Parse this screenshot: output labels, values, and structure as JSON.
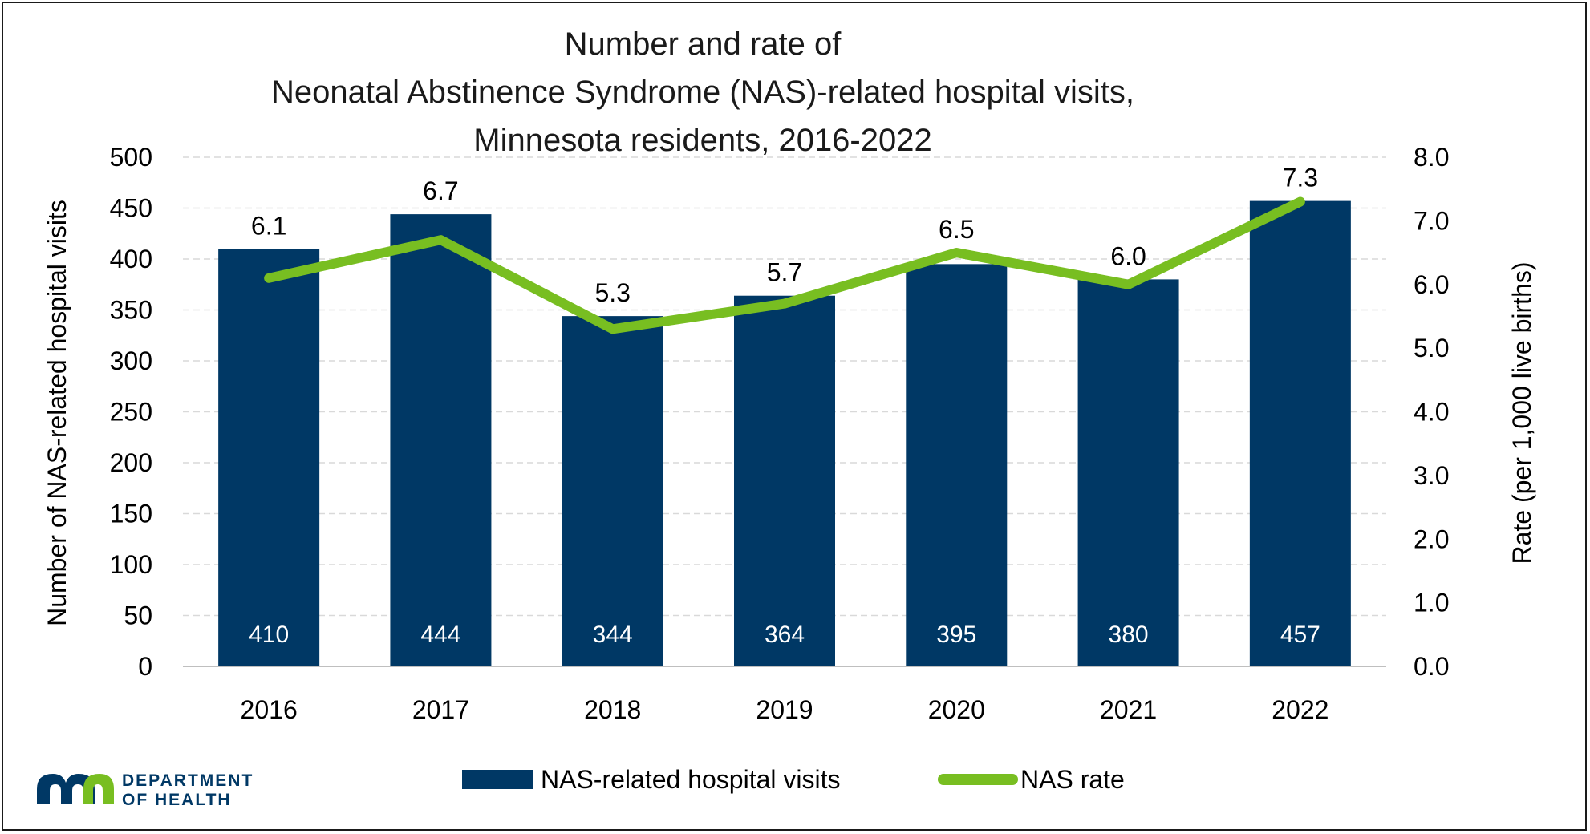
{
  "chart_data": {
    "type": "bar+line",
    "title_lines": [
      "Number and rate of",
      "Neonatal Abstinence Syndrome (NAS)-related hospital visits,",
      "Minnesota residents, 2016-2022"
    ],
    "categories": [
      "2016",
      "2017",
      "2018",
      "2019",
      "2020",
      "2021",
      "2022"
    ],
    "series": [
      {
        "name": "NAS-related hospital visits",
        "type": "bar",
        "axis": "left",
        "color": "#003865",
        "values": [
          410,
          444,
          344,
          364,
          395,
          380,
          457
        ],
        "labels": [
          "410",
          "444",
          "344",
          "364",
          "395",
          "380",
          "457"
        ]
      },
      {
        "name": "NAS rate",
        "type": "line",
        "axis": "right",
        "color": "#78be21",
        "values": [
          6.1,
          6.7,
          5.3,
          5.7,
          6.5,
          6.0,
          7.3
        ],
        "labels": [
          "6.1",
          "6.7",
          "5.3",
          "5.7",
          "6.5",
          "6.0",
          "7.3"
        ]
      }
    ],
    "ylabel_left": "Number of  NAS-related hospital visits",
    "ylabel_right": "Rate (per 1,000 live births)",
    "ylim_left": [
      0,
      500
    ],
    "ylim_right": [
      0,
      8
    ],
    "yticks_left": [
      "0",
      "50",
      "100",
      "150",
      "200",
      "250",
      "300",
      "350",
      "400",
      "450",
      "500"
    ],
    "yticks_right": [
      "0.0",
      "1.0",
      "2.0",
      "3.0",
      "4.0",
      "5.0",
      "6.0",
      "7.0",
      "8.0"
    ],
    "grid": "horizontal dashed",
    "legend_position": "bottom"
  },
  "logo": {
    "line1": "DEPARTMENT",
    "line2": "OF HEALTH",
    "colors": {
      "navy": "#003865",
      "green": "#78be21"
    }
  }
}
